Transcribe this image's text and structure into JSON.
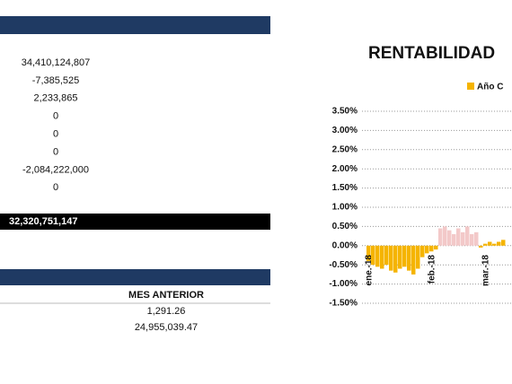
{
  "top_section": {
    "values": [
      "34,410,124,807",
      "-7,385,525",
      "2,233,865",
      "0",
      "0",
      "0",
      "-2,084,222,000",
      "0"
    ]
  },
  "total": "32,320,751,147",
  "bottom_section": {
    "header": "MES ANTERIOR",
    "values": [
      "1,291.26",
      "24,955,039.47"
    ]
  },
  "chart_data": {
    "type": "bar",
    "title": "RENTABILIDAD",
    "categories": [
      "ene.-18",
      null,
      null,
      null,
      null,
      null,
      null,
      null,
      null,
      null,
      null,
      null,
      null,
      null,
      "feb.-18",
      null,
      null,
      null,
      null,
      null,
      null,
      null,
      null,
      null,
      null,
      null,
      "mar.-18",
      null,
      null,
      null,
      null
    ],
    "series": [
      {
        "name": "Año C",
        "color": "#f5b400",
        "values": [
          -0.4,
          -0.5,
          -0.55,
          -0.6,
          -0.5,
          -0.65,
          -0.7,
          -0.6,
          -0.55,
          -0.65,
          -0.75,
          -0.6,
          -0.3,
          -0.2,
          -0.15,
          -0.1,
          0.45,
          0.5,
          0.4,
          0.3,
          0.45,
          0.35,
          0.5,
          0.3,
          0.35,
          -0.05,
          0.05,
          0.1,
          0.05,
          0.1,
          0.15
        ],
        "colors": [
          "#f5b400",
          "#f5b400",
          "#f5b400",
          "#f5b400",
          "#f5b400",
          "#f5b400",
          "#f5b400",
          "#f5b400",
          "#f5b400",
          "#f5b400",
          "#f5b400",
          "#f5b400",
          "#f5b400",
          "#f5b400",
          "#f5b400",
          "#f5b400",
          "#f3c9c9",
          "#f3c9c9",
          "#f3c9c9",
          "#f3c9c9",
          "#f3c9c9",
          "#f3c9c9",
          "#f3c9c9",
          "#f3c9c9",
          "#f3c9c9",
          "#f5b400",
          "#f5b400",
          "#f5b400",
          "#f5b400",
          "#f5b400",
          "#f5b400"
        ]
      }
    ],
    "ylim": [
      -1.5,
      3.5
    ],
    "yticks": [
      {
        "value": 3.5,
        "label": "3.50%"
      },
      {
        "value": 3.0,
        "label": "3.00%"
      },
      {
        "value": 2.5,
        "label": "2.50%"
      },
      {
        "value": 2.0,
        "label": "2.00%"
      },
      {
        "value": 1.5,
        "label": "1.50%"
      },
      {
        "value": 1.0,
        "label": "1.00%"
      },
      {
        "value": 0.5,
        "label": "0.50%"
      },
      {
        "value": 0.0,
        "label": "0.00%"
      },
      {
        "value": -0.5,
        "label": "-0.50%"
      },
      {
        "value": -1.0,
        "label": "-1.00%"
      },
      {
        "value": -1.5,
        "label": "-1.50%"
      }
    ],
    "grid": true
  }
}
